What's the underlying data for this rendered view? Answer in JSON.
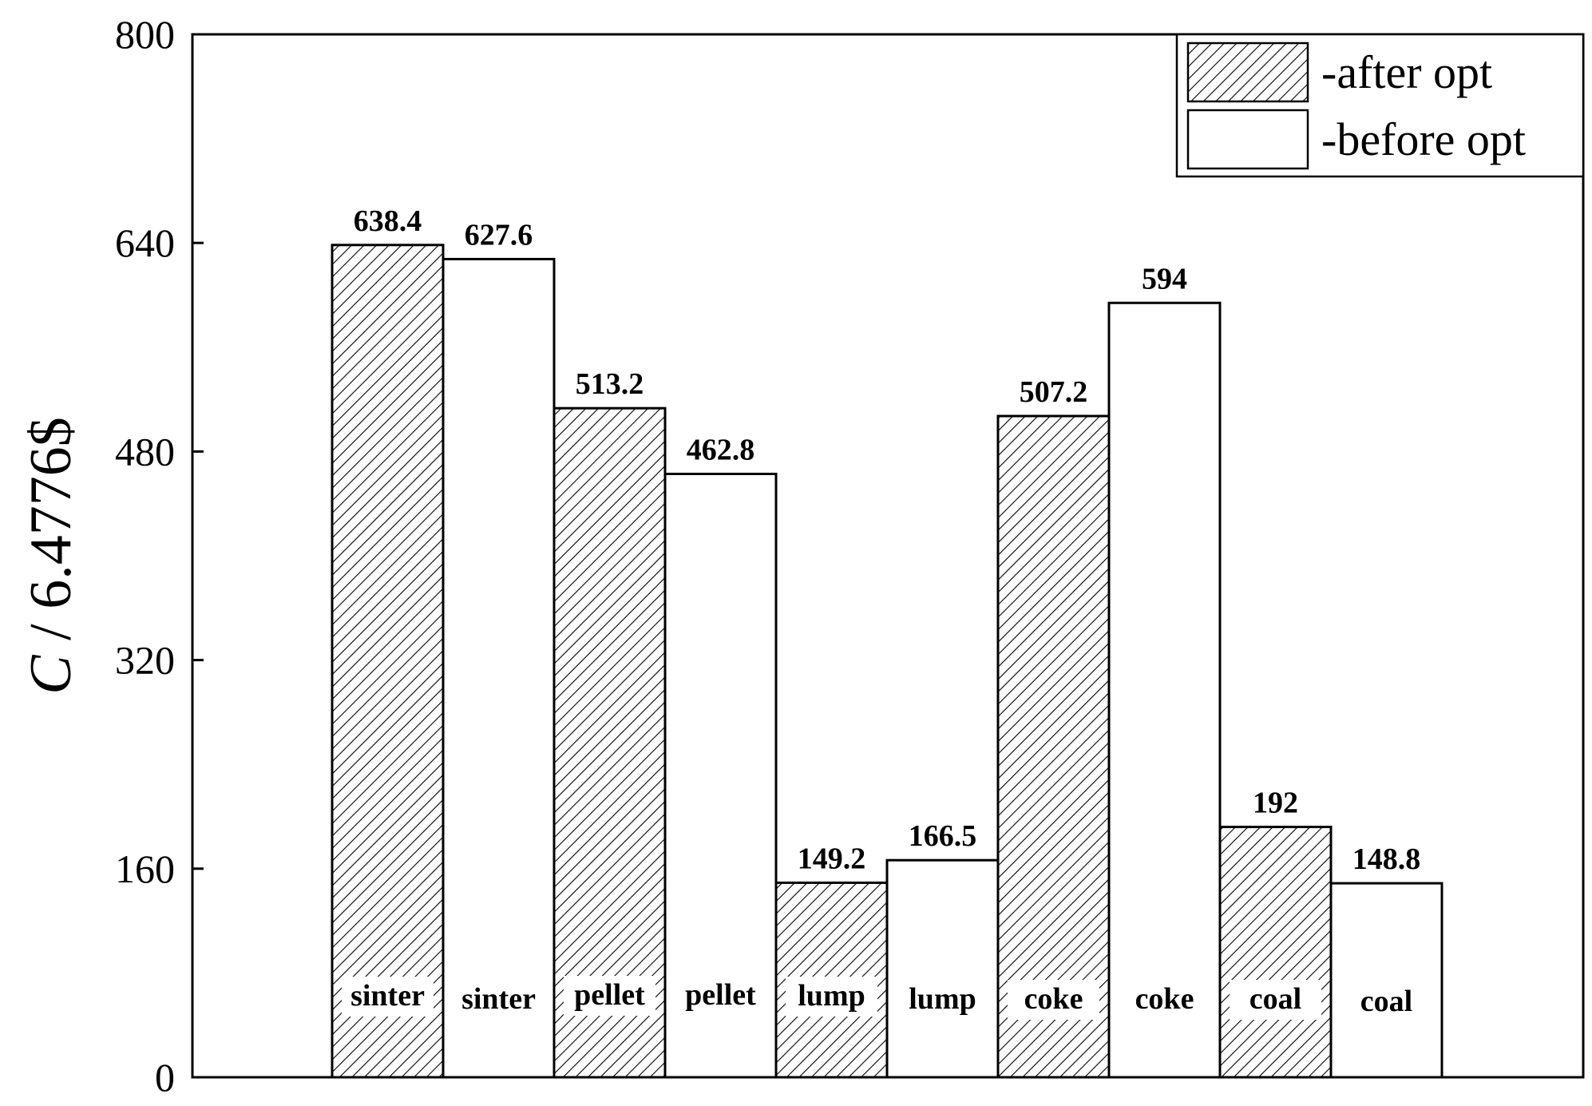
{
  "chart_data": {
    "type": "bar",
    "ylabel": "C / 6.4776$",
    "ylabel_italic_part": "C",
    "ylabel_rest": " / 6.4776$",
    "ylim": [
      0,
      800
    ],
    "yticks": [
      0,
      160,
      320,
      480,
      640,
      800
    ],
    "categories": [
      "sinter",
      "pellet",
      "lump",
      "coke",
      "coal"
    ],
    "series": [
      {
        "name": "-after opt",
        "pattern": "hatched",
        "values": [
          638.4,
          513.2,
          149.2,
          507.2,
          192
        ],
        "labels": [
          "638.4",
          "513.2",
          "149.2",
          "507.2",
          "192"
        ]
      },
      {
        "name": "-before opt",
        "pattern": "white",
        "values": [
          627.6,
          462.8,
          166.5,
          594,
          148.8
        ],
        "labels": [
          "627.6",
          "462.8",
          "166.5",
          "594",
          "148.8"
        ]
      }
    ],
    "legend_position": "top-right",
    "grid": false
  }
}
